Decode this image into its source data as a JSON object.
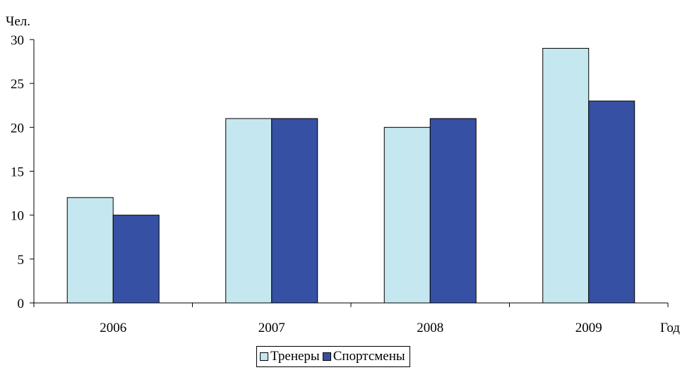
{
  "chart_data": {
    "type": "bar",
    "ylabel": "Чел.",
    "xlabel": "Год",
    "categories": [
      "2006",
      "2007",
      "2008",
      "2009"
    ],
    "series": [
      {
        "name": "Тренеры",
        "values": [
          12,
          21,
          20,
          29
        ],
        "color": "#c5e7ef"
      },
      {
        "name": "Спортсмены",
        "values": [
          10,
          21,
          21,
          23
        ],
        "color": "#3651a3"
      }
    ],
    "ylim": [
      0,
      30
    ],
    "yticks": [
      0,
      5,
      10,
      15,
      20,
      25,
      30
    ],
    "grid": false,
    "legend_position": "bottom"
  }
}
